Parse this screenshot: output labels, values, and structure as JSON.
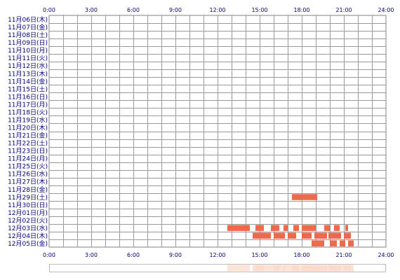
{
  "chart_data": {
    "type": "heatmap",
    "x_ticks": [
      "0:00",
      "3:00",
      "6:00",
      "9:00",
      "12:00",
      "15:00",
      "18:00",
      "21:00",
      "24:00"
    ],
    "xlim": [
      0,
      24
    ],
    "grid": true,
    "bar_color": "#ef6a4a",
    "summary_color": "#fbd9c8",
    "rows": [
      {
        "label": "11月06日(木)",
        "intervals": []
      },
      {
        "label": "11月07日(金)",
        "intervals": []
      },
      {
        "label": "11月08日(土)",
        "intervals": []
      },
      {
        "label": "11月09日(日)",
        "intervals": []
      },
      {
        "label": "11月10日(月)",
        "intervals": []
      },
      {
        "label": "11月11日(火)",
        "intervals": []
      },
      {
        "label": "11月12日(水)",
        "intervals": []
      },
      {
        "label": "11月13日(木)",
        "intervals": []
      },
      {
        "label": "11月14日(金)",
        "intervals": []
      },
      {
        "label": "11月15日(土)",
        "intervals": []
      },
      {
        "label": "11月16日(日)",
        "intervals": []
      },
      {
        "label": "11月17日(月)",
        "intervals": []
      },
      {
        "label": "11月18日(火)",
        "intervals": []
      },
      {
        "label": "11月19日(水)",
        "intervals": []
      },
      {
        "label": "11月20日(木)",
        "intervals": []
      },
      {
        "label": "11月21日(金)",
        "intervals": []
      },
      {
        "label": "11月22日(土)",
        "intervals": []
      },
      {
        "label": "11月23日(日)",
        "intervals": []
      },
      {
        "label": "11月24日(月)",
        "intervals": []
      },
      {
        "label": "11月25日(火)",
        "intervals": []
      },
      {
        "label": "11月26日(水)",
        "intervals": []
      },
      {
        "label": "11月27日(木)",
        "intervals": []
      },
      {
        "label": "11月28日(金)",
        "intervals": []
      },
      {
        "label": "11月29日(土)",
        "intervals": [
          [
            17.3,
            19.1
          ]
        ]
      },
      {
        "label": "11月30日(日)",
        "intervals": []
      },
      {
        "label": "12月01日(月)",
        "intervals": []
      },
      {
        "label": "12月02日(火)",
        "intervals": []
      },
      {
        "label": "12月03日(水)",
        "intervals": [
          [
            12.7,
            14.3
          ],
          [
            14.7,
            15.3
          ],
          [
            15.8,
            16.4
          ],
          [
            16.7,
            17.0
          ],
          [
            17.4,
            17.8
          ],
          [
            18.0,
            19.0
          ],
          [
            19.6,
            20.0
          ],
          [
            20.3,
            20.7
          ],
          [
            21.1,
            21.3
          ]
        ]
      },
      {
        "label": "12月04日(木)",
        "intervals": [
          [
            14.5,
            15.8
          ],
          [
            16.0,
            16.8
          ],
          [
            17.0,
            17.6
          ],
          [
            18.0,
            18.7
          ],
          [
            18.9,
            19.8
          ],
          [
            19.9,
            20.8
          ],
          [
            21.0,
            21.5
          ]
        ]
      },
      {
        "label": "12月05日(金)",
        "intervals": [
          [
            18.7,
            19.6
          ],
          [
            20.0,
            20.5
          ],
          [
            20.7,
            21.1
          ],
          [
            21.3,
            21.7
          ]
        ]
      }
    ]
  }
}
